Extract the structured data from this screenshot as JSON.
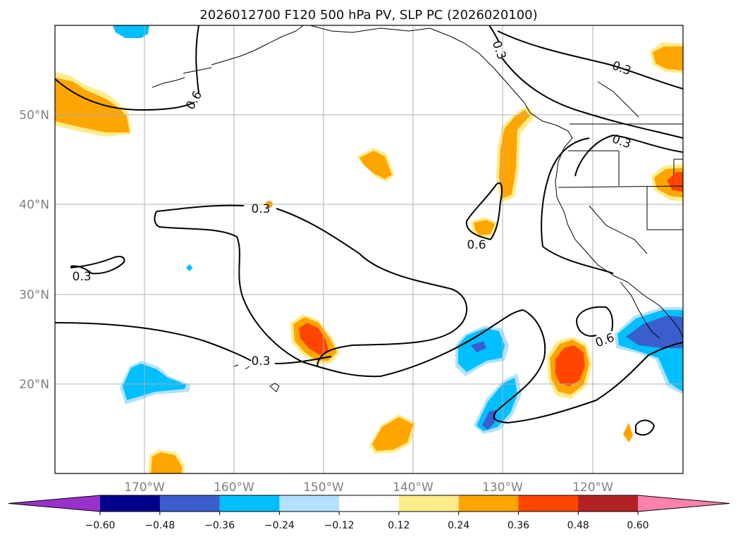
{
  "title": "2026012700 F120 500 hPa PV, SLP PC (2026020100)",
  "lon_ticks": [
    "170°W",
    "160°W",
    "150°W",
    "140°W",
    "130°W",
    "120°W"
  ],
  "lat_ticks": [
    "50°N",
    "40°N",
    "30°N",
    "20°N"
  ],
  "contour_labels": [
    "0.3",
    "0.6",
    "0.3",
    "0.3",
    "0.3",
    "0.6",
    "0.3",
    "0.6"
  ],
  "colorbar": {
    "ticks": [
      "−0.60",
      "−0.48",
      "−0.36",
      "−0.24",
      "−0.12",
      "0.12",
      "0.24",
      "0.36",
      "0.48",
      "0.60"
    ],
    "colors": [
      "#9932CC",
      "#00008B",
      "#3A5FCD",
      "#00BFFF",
      "#B0E2FF",
      "#FFFFFF",
      "#FFEC8B",
      "#FFA500",
      "#FF4500",
      "#B22222",
      "#FF82AB"
    ]
  },
  "chart_data": {
    "type": "map",
    "projection": "plate-carree",
    "extent": {
      "lon": [
        -180,
        -110
      ],
      "lat": [
        10,
        60
      ]
    },
    "fields": [
      "500 hPa PV anomaly (shaded)",
      "SLP PC (contours)"
    ],
    "contour_levels": [
      0.3,
      0.6
    ],
    "colorbar_levels": [
      -0.6,
      -0.48,
      -0.36,
      -0.24,
      -0.12,
      0.12,
      0.24,
      0.36,
      0.48,
      0.6
    ],
    "grid": true
  }
}
